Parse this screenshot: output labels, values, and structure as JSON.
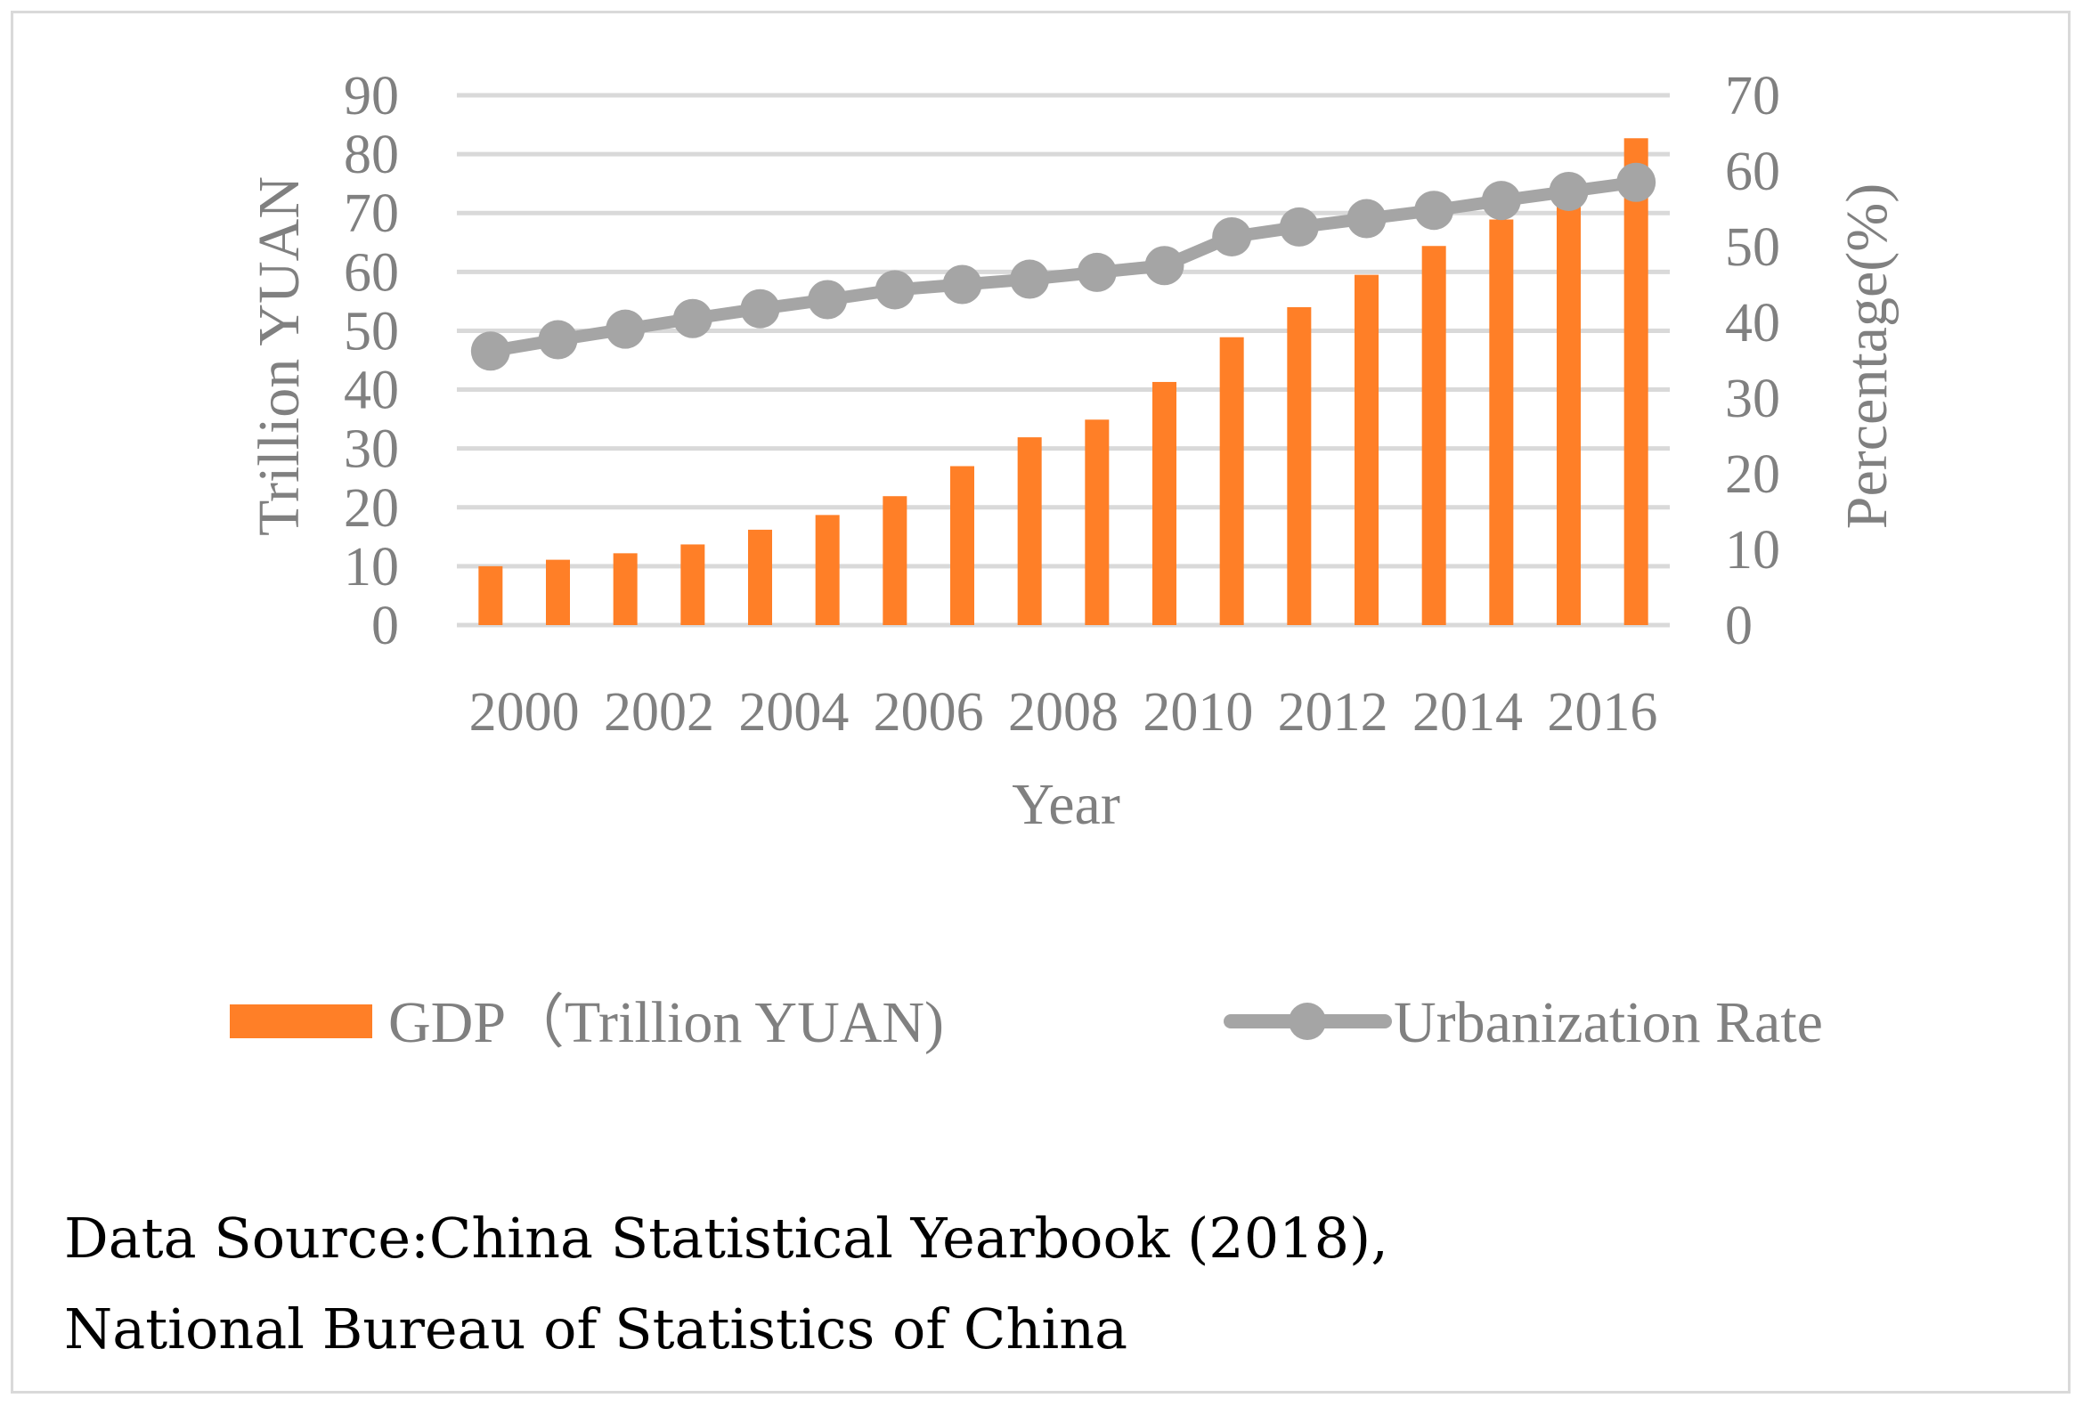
{
  "chart_data": {
    "type": "bar+line",
    "categories": [
      "2000",
      "2001",
      "2002",
      "2003",
      "2004",
      "2005",
      "2006",
      "2007",
      "2008",
      "2009",
      "2010",
      "2011",
      "2012",
      "2013",
      "2014",
      "2015",
      "2016",
      "2017"
    ],
    "x_tick_labels": [
      "2000",
      "2002",
      "2004",
      "2006",
      "2008",
      "2010",
      "2012",
      "2014",
      "2016"
    ],
    "series": [
      {
        "name": "GDP（Trillion YUAN)",
        "kind": "bar",
        "axis": "left",
        "color": "#ff7f27",
        "values": [
          10.0,
          11.1,
          12.2,
          13.7,
          16.2,
          18.7,
          21.9,
          27.0,
          31.9,
          34.9,
          41.3,
          48.9,
          54.0,
          59.5,
          64.4,
          68.9,
          74.6,
          82.7
        ]
      },
      {
        "name": "Urbanization Rate",
        "kind": "line",
        "axis": "right",
        "color": "#a5a5a5",
        "values": [
          36.2,
          37.7,
          39.1,
          40.5,
          41.8,
          43.0,
          44.3,
          45.0,
          45.7,
          46.6,
          47.5,
          51.3,
          52.6,
          53.7,
          54.8,
          56.1,
          57.3,
          58.5
        ]
      }
    ],
    "ylabel": "Trillion YUAN",
    "y2label": "Percentage(%)",
    "xlabel": "Year",
    "ylim": [
      0,
      90
    ],
    "y2lim": [
      0,
      70
    ],
    "yticks": [
      0,
      10,
      20,
      30,
      40,
      50,
      60,
      70,
      80,
      90
    ],
    "y2ticks": [
      0,
      10,
      20,
      30,
      40,
      50,
      60,
      70
    ],
    "grid": true,
    "legend_position": "bottom"
  },
  "source_note": {
    "line1": "Data Source:China Statistical Yearbook (2018),",
    "line2": "National Bureau of Statistics of China"
  },
  "colors": {
    "bar": "#ff7f27",
    "line": "#a5a5a5",
    "grid": "#d9d9d9",
    "text": "#808080"
  }
}
